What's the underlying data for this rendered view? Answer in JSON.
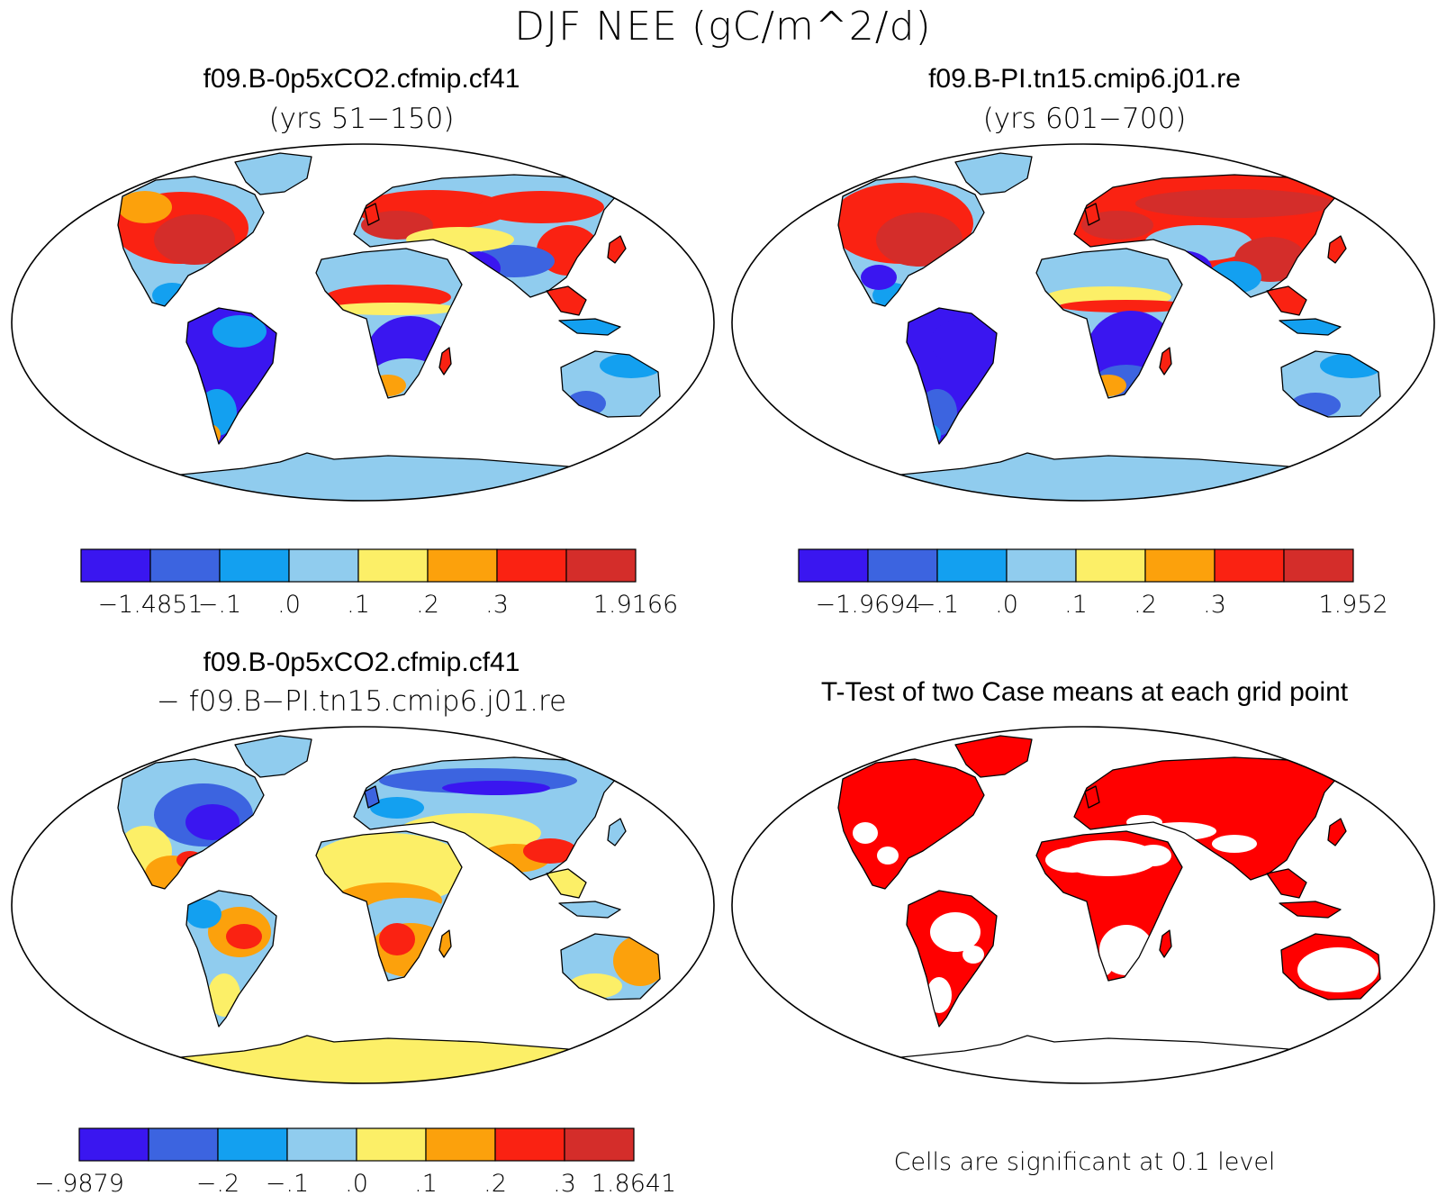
{
  "title": "DJF NEE (gC/m^2/d)",
  "palette": [
    "#3a16f0",
    "#3c64e0",
    "#13a0f0",
    "#90ccee",
    "#fcef67",
    "#fca10c",
    "#fa2212",
    "#d42d2a"
  ],
  "panels": [
    {
      "id": "case1",
      "title_line1": "f09.B-0p5xCO2.cfmip.cf41",
      "title_line2": "(yrs 51−150)",
      "colorbar_labels": [
        "−1.4851",
        "−.1",
        ".0",
        ".1",
        ".2",
        ".3",
        "1.9166"
      ]
    },
    {
      "id": "case2",
      "title_line1": "f09.B-PI.tn15.cmip6.j01.re",
      "title_line2": "(yrs 601−700)",
      "colorbar_labels": [
        "−1.9694",
        "−.1",
        ".0",
        ".1",
        ".2",
        ".3",
        "1.952"
      ]
    },
    {
      "id": "difference",
      "title_line1": "f09.B-0p5xCO2.cfmip.cf41",
      "title_line2": "− f09.B−PI.tn15.cmip6.j01.re",
      "colorbar_labels": [
        "−.9879",
        "−.2",
        "−.1",
        ".0",
        ".1",
        ".2",
        ".3",
        "1.8641"
      ]
    },
    {
      "id": "ttest",
      "title_line1": "T-Test of two Case means at each grid point",
      "footer": "Cells are significant at 0.1 level",
      "significant_color": "#ff0000"
    }
  ]
}
